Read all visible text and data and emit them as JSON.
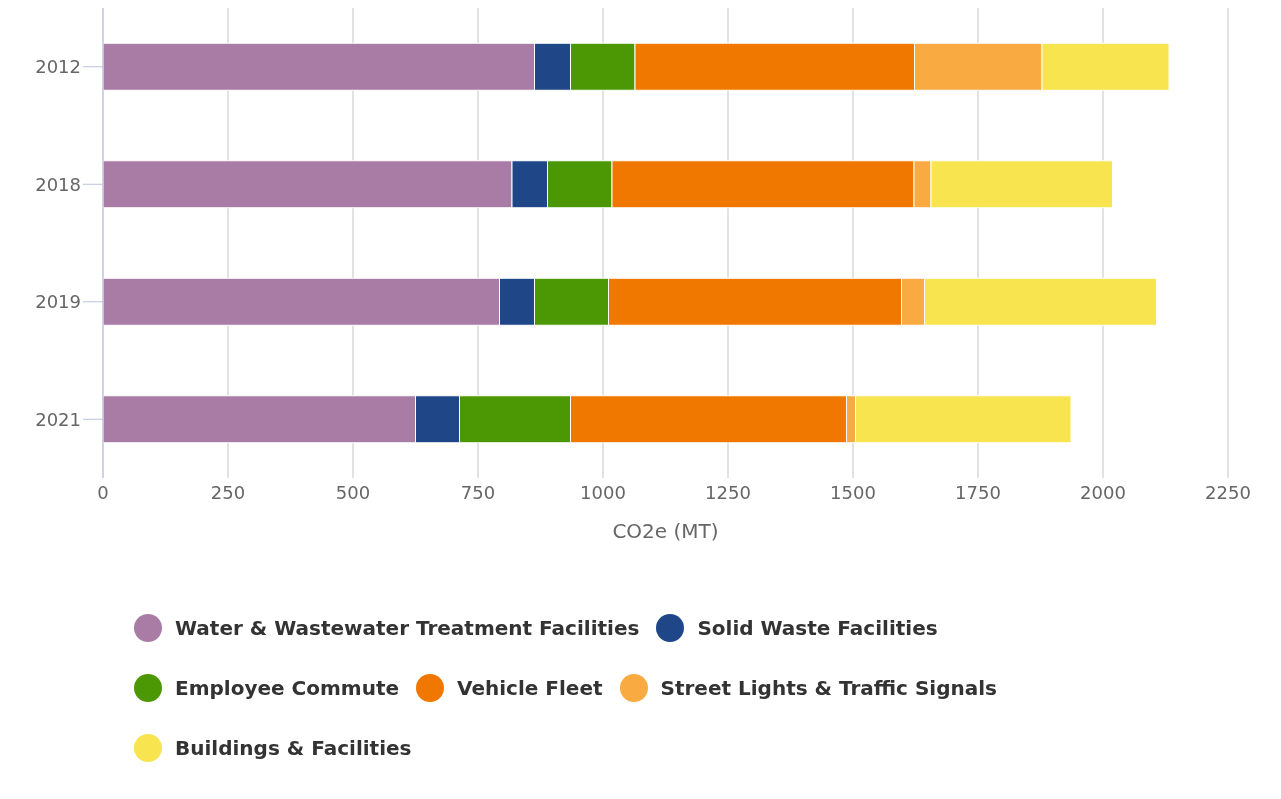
{
  "chart_data": {
    "type": "bar",
    "orientation": "horizontal",
    "stacked": true,
    "xlabel": "CO2e (MT)",
    "categories": [
      "2012",
      "2018",
      "2019",
      "2021"
    ],
    "series": [
      {
        "name": "Water & Wastewater Treatment Facilities",
        "color": "#a87ca5",
        "values": [
          863,
          818,
          793,
          625
        ]
      },
      {
        "name": "Solid Waste Facilities",
        "color": "#1f4788",
        "values": [
          72,
          71,
          70,
          88
        ]
      },
      {
        "name": "Employee Commute",
        "color": "#4c9804",
        "values": [
          129,
          129,
          148,
          222
        ]
      },
      {
        "name": "Vehicle Fleet",
        "color": "#f07800",
        "values": [
          559,
          604,
          586,
          552
        ]
      },
      {
        "name": "Street Lights & Traffic Signals",
        "color": "#f9aa40",
        "values": [
          255,
          34,
          46,
          18
        ]
      },
      {
        "name": "Buildings & Facilities",
        "color": "#f8e44e",
        "values": [
          254,
          363,
          464,
          431
        ]
      }
    ],
    "xlim": [
      0,
      2250
    ],
    "xticks": [
      0,
      250,
      500,
      750,
      1000,
      1250,
      1500,
      1750,
      2000,
      2250
    ],
    "grid": "x",
    "legend": "bottom"
  }
}
